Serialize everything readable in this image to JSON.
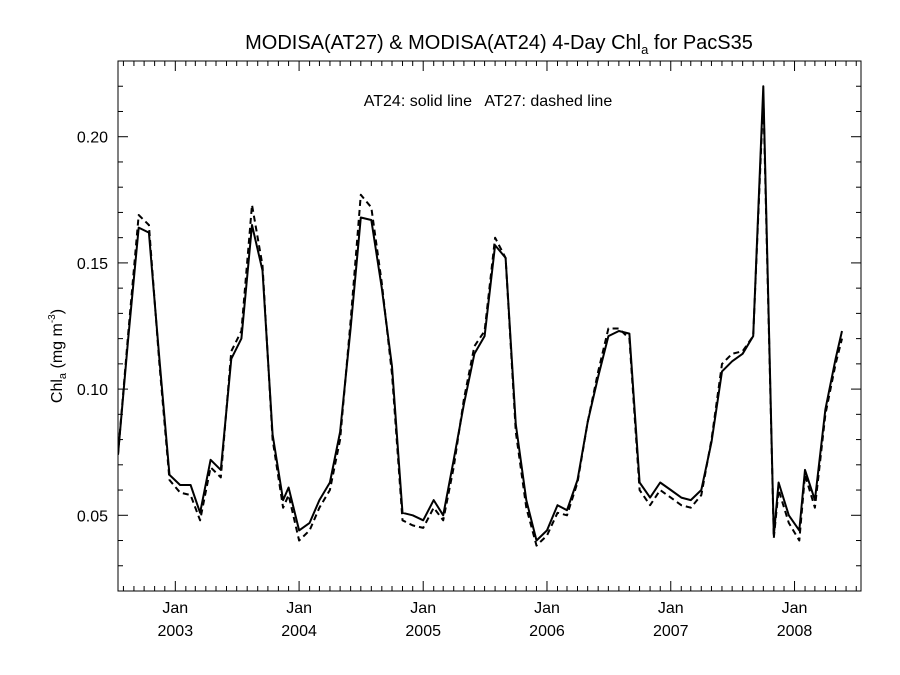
{
  "chart_data": {
    "type": "line",
    "title": {
      "main": "MODISA(AT27) & MODISA(AT24) 4-Day Chl",
      "sub": "a",
      "tail": " for PacS35"
    },
    "annotation": "AT24: solid line   AT27: dashed line",
    "ylabel": {
      "main": "Chl",
      "sub": "a",
      "unit": " (mg m",
      "sup": "-3",
      "close": ")"
    },
    "ylim": [
      0.02,
      0.23
    ],
    "xlim": [
      "2002-07-16",
      "2008-07-15"
    ],
    "y_ticks": [
      "0.05",
      "0.10",
      "0.15",
      "0.20"
    ],
    "x_ticks": [
      {
        "date": "2003-01-01",
        "label": "Jan",
        "year": "2003"
      },
      {
        "date": "2004-01-01",
        "label": "Jan",
        "year": "2004"
      },
      {
        "date": "2005-01-01",
        "label": "Jan",
        "year": "2005"
      },
      {
        "date": "2006-01-01",
        "label": "Jan",
        "year": "2006"
      },
      {
        "date": "2007-01-01",
        "label": "Jan",
        "year": "2007"
      },
      {
        "date": "2008-01-01",
        "label": "Jan",
        "year": "2008"
      }
    ],
    "grid": false,
    "series": [
      {
        "name": "AT24",
        "style": "solid",
        "color": "#000000",
        "points": [
          [
            "2002-07-16",
            0.074
          ],
          [
            "2002-08-15",
            0.12
          ],
          [
            "2002-09-15",
            0.164
          ],
          [
            "2002-10-15",
            0.162
          ],
          [
            "2002-11-15",
            0.112
          ],
          [
            "2002-12-15",
            0.066
          ],
          [
            "2003-01-15",
            0.062
          ],
          [
            "2003-02-15",
            0.062
          ],
          [
            "2003-03-15",
            0.051
          ],
          [
            "2003-04-15",
            0.072
          ],
          [
            "2003-05-15",
            0.068
          ],
          [
            "2003-06-15",
            0.112
          ],
          [
            "2003-07-15",
            0.12
          ],
          [
            "2003-08-15",
            0.165
          ],
          [
            "2003-09-15",
            0.147
          ],
          [
            "2003-10-15",
            0.082
          ],
          [
            "2003-11-15",
            0.056
          ],
          [
            "2003-12-01",
            0.061
          ],
          [
            "2004-01-01",
            0.044
          ],
          [
            "2004-02-01",
            0.047
          ],
          [
            "2004-03-01",
            0.056
          ],
          [
            "2004-04-01",
            0.063
          ],
          [
            "2004-05-01",
            0.083
          ],
          [
            "2004-06-01",
            0.124
          ],
          [
            "2004-07-01",
            0.168
          ],
          [
            "2004-08-01",
            0.167
          ],
          [
            "2004-09-01",
            0.14
          ],
          [
            "2004-10-01",
            0.109
          ],
          [
            "2004-11-01",
            0.051
          ],
          [
            "2004-12-01",
            0.05
          ],
          [
            "2005-01-01",
            0.048
          ],
          [
            "2005-02-01",
            0.056
          ],
          [
            "2005-03-01",
            0.05
          ],
          [
            "2005-04-01",
            0.072
          ],
          [
            "2005-05-01",
            0.094
          ],
          [
            "2005-06-01",
            0.114
          ],
          [
            "2005-07-01",
            0.121
          ],
          [
            "2005-08-01",
            0.157
          ],
          [
            "2005-09-01",
            0.152
          ],
          [
            "2005-10-01",
            0.086
          ],
          [
            "2005-11-01",
            0.056
          ],
          [
            "2005-12-01",
            0.04
          ],
          [
            "2006-01-01",
            0.044
          ],
          [
            "2006-02-01",
            0.054
          ],
          [
            "2006-03-01",
            0.052
          ],
          [
            "2006-04-01",
            0.064
          ],
          [
            "2006-05-01",
            0.087
          ],
          [
            "2006-06-01",
            0.105
          ],
          [
            "2006-07-01",
            0.121
          ],
          [
            "2006-08-01",
            0.123
          ],
          [
            "2006-09-01",
            0.122
          ],
          [
            "2006-10-01",
            0.063
          ],
          [
            "2006-11-01",
            0.057
          ],
          [
            "2006-12-01",
            0.063
          ],
          [
            "2007-01-01",
            0.06
          ],
          [
            "2007-02-01",
            0.057
          ],
          [
            "2007-03-01",
            0.056
          ],
          [
            "2007-04-01",
            0.06
          ],
          [
            "2007-05-01",
            0.079
          ],
          [
            "2007-06-01",
            0.107
          ],
          [
            "2007-07-01",
            0.111
          ],
          [
            "2007-08-01",
            0.114
          ],
          [
            "2007-09-01",
            0.121
          ],
          [
            "2007-10-01",
            0.22
          ],
          [
            "2007-11-01",
            0.042
          ],
          [
            "2007-11-15",
            0.063
          ],
          [
            "2007-12-15",
            0.05
          ],
          [
            "2008-01-15",
            0.044
          ],
          [
            "2008-02-01",
            0.068
          ],
          [
            "2008-03-01",
            0.056
          ],
          [
            "2008-04-01",
            0.092
          ],
          [
            "2008-05-01",
            0.112
          ],
          [
            "2008-05-20",
            0.123
          ]
        ]
      },
      {
        "name": "AT27",
        "style": "dashed",
        "color": "#000000",
        "points": [
          [
            "2002-07-16",
            0.074
          ],
          [
            "2002-08-15",
            0.122
          ],
          [
            "2002-09-15",
            0.169
          ],
          [
            "2002-10-15",
            0.165
          ],
          [
            "2002-11-15",
            0.11
          ],
          [
            "2002-12-15",
            0.064
          ],
          [
            "2003-01-15",
            0.059
          ],
          [
            "2003-02-15",
            0.058
          ],
          [
            "2003-03-15",
            0.048
          ],
          [
            "2003-04-15",
            0.069
          ],
          [
            "2003-05-15",
            0.065
          ],
          [
            "2003-06-15",
            0.115
          ],
          [
            "2003-07-15",
            0.123
          ],
          [
            "2003-08-15",
            0.173
          ],
          [
            "2003-09-15",
            0.149
          ],
          [
            "2003-10-15",
            0.08
          ],
          [
            "2003-11-15",
            0.053
          ],
          [
            "2003-12-01",
            0.058
          ],
          [
            "2004-01-01",
            0.04
          ],
          [
            "2004-02-01",
            0.044
          ],
          [
            "2004-03-01",
            0.053
          ],
          [
            "2004-04-01",
            0.06
          ],
          [
            "2004-05-01",
            0.08
          ],
          [
            "2004-06-01",
            0.127
          ],
          [
            "2004-07-01",
            0.177
          ],
          [
            "2004-08-01",
            0.172
          ],
          [
            "2004-09-01",
            0.142
          ],
          [
            "2004-10-01",
            0.106
          ],
          [
            "2004-11-01",
            0.048
          ],
          [
            "2004-12-01",
            0.046
          ],
          [
            "2005-01-01",
            0.045
          ],
          [
            "2005-02-01",
            0.053
          ],
          [
            "2005-03-01",
            0.048
          ],
          [
            "2005-04-01",
            0.069
          ],
          [
            "2005-05-01",
            0.096
          ],
          [
            "2005-06-01",
            0.117
          ],
          [
            "2005-07-01",
            0.123
          ],
          [
            "2005-08-01",
            0.16
          ],
          [
            "2005-09-01",
            0.152
          ],
          [
            "2005-10-01",
            0.083
          ],
          [
            "2005-11-01",
            0.053
          ],
          [
            "2005-12-01",
            0.038
          ],
          [
            "2006-01-01",
            0.042
          ],
          [
            "2006-02-01",
            0.051
          ],
          [
            "2006-03-01",
            0.05
          ],
          [
            "2006-04-01",
            0.063
          ],
          [
            "2006-05-01",
            0.087
          ],
          [
            "2006-06-01",
            0.107
          ],
          [
            "2006-07-01",
            0.124
          ],
          [
            "2006-08-01",
            0.124
          ],
          [
            "2006-09-01",
            0.12
          ],
          [
            "2006-10-01",
            0.06
          ],
          [
            "2006-11-01",
            0.054
          ],
          [
            "2006-12-01",
            0.06
          ],
          [
            "2007-01-01",
            0.057
          ],
          [
            "2007-02-01",
            0.054
          ],
          [
            "2007-03-01",
            0.053
          ],
          [
            "2007-04-01",
            0.058
          ],
          [
            "2007-05-01",
            0.08
          ],
          [
            "2007-06-01",
            0.11
          ],
          [
            "2007-07-01",
            0.114
          ],
          [
            "2007-08-01",
            0.115
          ],
          [
            "2007-09-01",
            0.121
          ],
          [
            "2007-10-01",
            0.216
          ],
          [
            "2007-11-01",
            0.041
          ],
          [
            "2007-11-15",
            0.06
          ],
          [
            "2007-12-15",
            0.047
          ],
          [
            "2008-01-15",
            0.04
          ],
          [
            "2008-02-01",
            0.066
          ],
          [
            "2008-03-01",
            0.053
          ],
          [
            "2008-04-01",
            0.09
          ],
          [
            "2008-05-01",
            0.11
          ],
          [
            "2008-05-20",
            0.12
          ]
        ]
      }
    ]
  }
}
